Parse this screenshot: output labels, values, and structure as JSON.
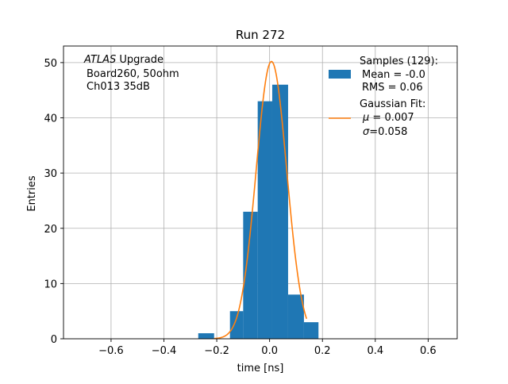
{
  "chart_data": {
    "type": "histogram",
    "title": "Run 272",
    "xlabel": "time [ns]",
    "ylabel": "Entries",
    "xlim": [
      -0.78,
      0.71
    ],
    "ylim": [
      0,
      53
    ],
    "grid": true,
    "xticks": [
      -0.6,
      -0.4,
      -0.2,
      0.0,
      0.2,
      0.4,
      0.6
    ],
    "xtick_labels": [
      "−0.6",
      "−0.4",
      "−0.2",
      "0.0",
      "0.2",
      "0.4",
      "0.6"
    ],
    "yticks": [
      0,
      10,
      20,
      30,
      40,
      50
    ],
    "ytick_labels": [
      "0",
      "10",
      "20",
      "30",
      "40",
      "50"
    ],
    "bins": [
      {
        "x0": -0.27,
        "x1": -0.21,
        "count": 1
      },
      {
        "x0": -0.21,
        "x1": -0.15,
        "count": 0
      },
      {
        "x0": -0.15,
        "x1": -0.1,
        "count": 5
      },
      {
        "x0": -0.1,
        "x1": -0.045,
        "count": 23
      },
      {
        "x0": -0.045,
        "x1": 0.01,
        "count": 43
      },
      {
        "x0": 0.01,
        "x1": 0.07,
        "count": 46
      },
      {
        "x0": 0.07,
        "x1": 0.13,
        "count": 8
      },
      {
        "x0": 0.13,
        "x1": 0.185,
        "count": 3
      }
    ],
    "fit": {
      "type": "gaussian",
      "mu": 0.007,
      "sigma": 0.058,
      "amplitude": 50.2,
      "x_range": [
        -0.21,
        0.14
      ]
    },
    "colors": {
      "bars": "#1f77b4",
      "fit": "#ff7f0e",
      "grid": "#b0b0b0"
    },
    "annotation": {
      "line1_italic": "ATLAS",
      "line1_rest": " Upgrade",
      "line2": "Board260, 50ohm",
      "line3": "Ch013 35dB"
    },
    "legend": {
      "position": "top-right",
      "samples": {
        "title": "Samples (129):",
        "mean": "Mean = -0.0",
        "rms": "RMS = 0.06"
      },
      "fit": {
        "title": "Gaussian Fit:",
        "mu_symbol": "μ",
        "mu_value": " = 0.007",
        "sigma_symbol": "σ",
        "sigma_value": "=0.058"
      }
    }
  }
}
